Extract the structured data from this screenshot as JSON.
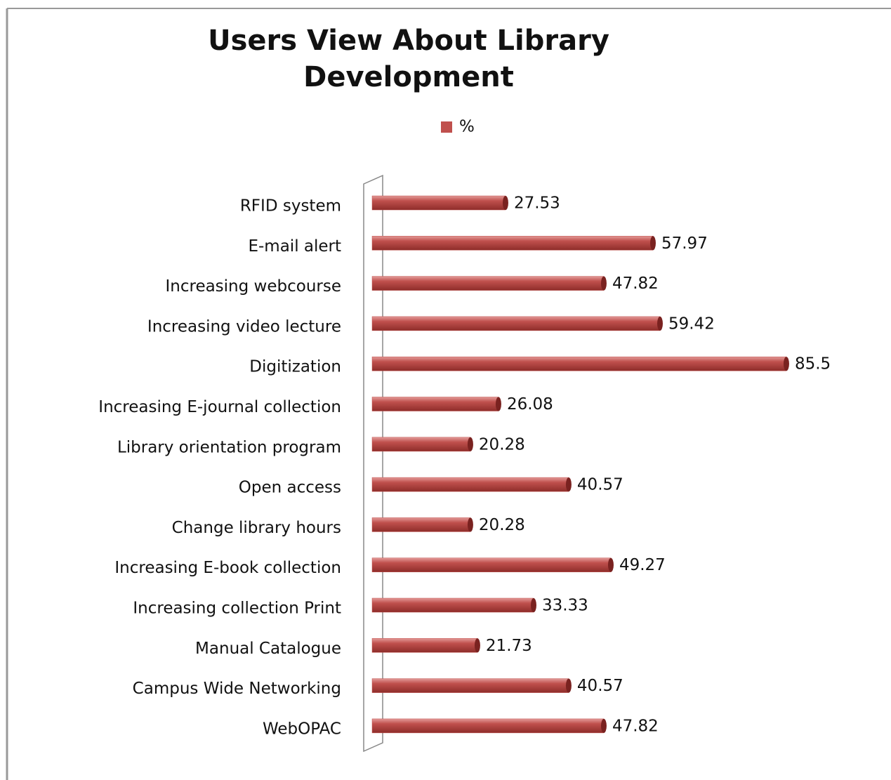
{
  "chart_data": {
    "type": "bar",
    "orientation": "horizontal",
    "title": [
      "Users View About Library",
      "Development"
    ],
    "legend": "top",
    "categories": [
      "RFID system",
      "E-mail alert",
      "Increasing webcourse",
      "Increasing video lecture",
      "Digitization",
      "Increasing E-journal collection",
      "Library orientation program",
      "Open access",
      "Change library hours",
      "Increasing E-book collection",
      "Increasing collection Print",
      "Manual Catalogue",
      "Campus Wide Networking",
      "WebOPAC"
    ],
    "series": [
      {
        "name": "%",
        "color": "#c0504d",
        "values": [
          27.53,
          57.97,
          47.82,
          59.42,
          85.5,
          26.08,
          20.28,
          40.57,
          20.28,
          49.27,
          33.33,
          21.73,
          40.57,
          47.82
        ]
      }
    ]
  }
}
